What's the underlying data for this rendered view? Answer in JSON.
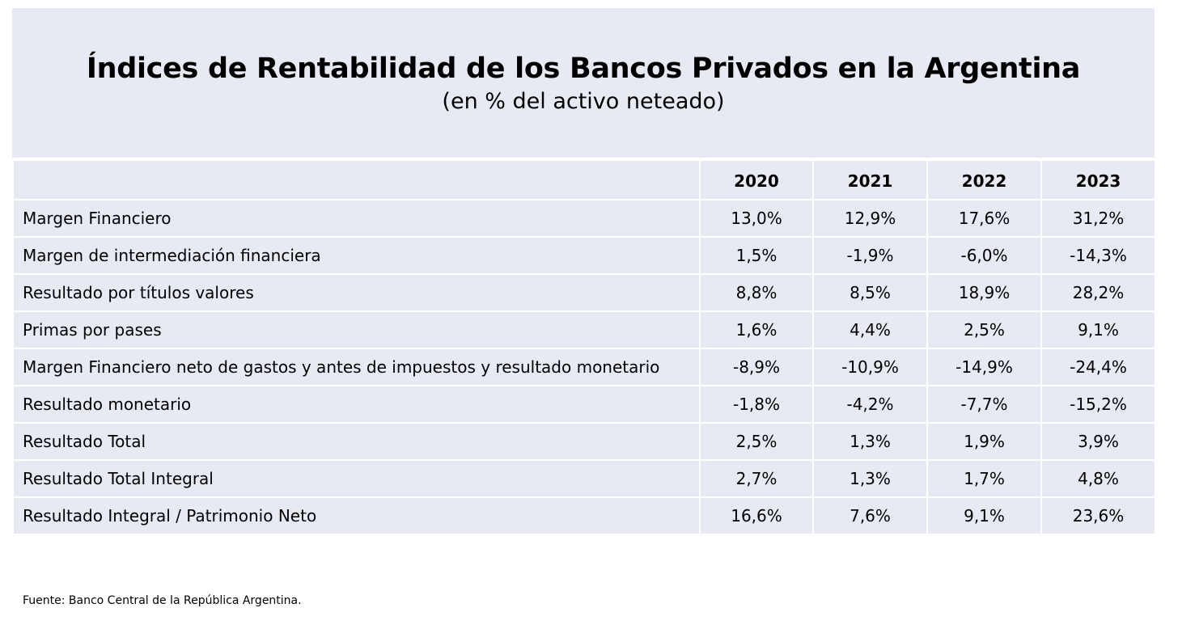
{
  "chart_data": {
    "type": "table",
    "title": "Índices de Rentabilidad de los Bancos Privados en la Argentina",
    "subtitle": "(en % del activo neteado)",
    "columns": [
      "2020",
      "2021",
      "2022",
      "2023"
    ],
    "rows": [
      {
        "label": "Margen Financiero",
        "values": [
          "13,0%",
          "12,9%",
          "17,6%",
          "31,2%"
        ]
      },
      {
        "label": "Margen de intermediación financiera",
        "values": [
          "1,5%",
          "-1,9%",
          "-6,0%",
          "-14,3%"
        ]
      },
      {
        "label": "Resultado por títulos valores",
        "values": [
          "8,8%",
          "8,5%",
          "18,9%",
          "28,2%"
        ]
      },
      {
        "label": "Primas por pases",
        "values": [
          "1,6%",
          "4,4%",
          "2,5%",
          "9,1%"
        ]
      },
      {
        "label": "Margen Financiero neto de gastos y antes de impuestos y resultado monetario",
        "values": [
          "-8,9%",
          "-10,9%",
          "-14,9%",
          "-24,4%"
        ]
      },
      {
        "label": "Resultado monetario",
        "values": [
          "-1,8%",
          "-4,2%",
          "-7,7%",
          "-15,2%"
        ]
      },
      {
        "label": "Resultado Total",
        "values": [
          "2,5%",
          "1,3%",
          "1,9%",
          "3,9%"
        ]
      },
      {
        "label": "Resultado Total Integral",
        "values": [
          "2,7%",
          "1,3%",
          "1,7%",
          "4,8%"
        ]
      },
      {
        "label": "Resultado Integral / Patrimonio Neto",
        "values": [
          "16,6%",
          "7,6%",
          "9,1%",
          "23,6%"
        ]
      }
    ],
    "source": "Fuente: Banco Central de la República Argentina.",
    "colors": {
      "cell_background": "#e7e9f3",
      "grid_lines": "#ffffff",
      "text": "#000000"
    }
  }
}
